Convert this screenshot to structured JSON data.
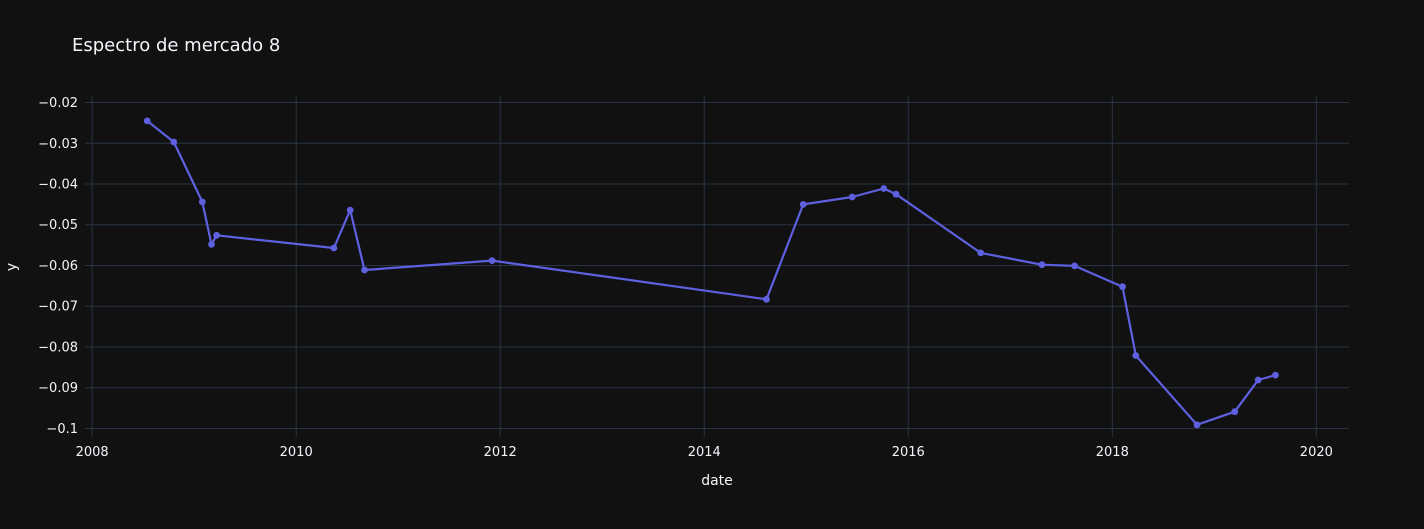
{
  "title": "Espectro de mercado 8",
  "colors": {
    "background": "#111111",
    "plot_background": "#111111",
    "grid": "#283442",
    "text": "#f2f5fa",
    "line": "#5e60e0",
    "marker": "#5e60e0"
  },
  "chart_data": {
    "type": "line",
    "mode": "lines+markers",
    "title": "Espectro de mercado 8",
    "xlabel": "date",
    "ylabel": "y",
    "grid": true,
    "legend": false,
    "xlim": [
      2007.93,
      2020.32
    ],
    "ylim": [
      -0.1021,
      -0.0184
    ],
    "x_ticks": {
      "values": [
        2008,
        2010,
        2012,
        2014,
        2016,
        2018,
        2020
      ],
      "labels": [
        "2008",
        "2010",
        "2012",
        "2014",
        "2016",
        "2018",
        "2020"
      ]
    },
    "y_ticks": {
      "values": [
        -0.02,
        -0.03,
        -0.04,
        -0.05,
        -0.06,
        -0.07,
        -0.08,
        -0.09,
        -0.1
      ],
      "labels": [
        "−0.02",
        "−0.03",
        "−0.04",
        "−0.05",
        "−0.06",
        "−0.07",
        "−0.08",
        "−0.09",
        "−0.1"
      ]
    },
    "series": [
      {
        "name": "y",
        "x": [
          2008.54,
          2008.8,
          2009.08,
          2009.17,
          2009.22,
          2010.37,
          2010.53,
          2010.67,
          2011.92,
          2014.61,
          2014.97,
          2015.45,
          2015.76,
          2015.88,
          2016.71,
          2017.31,
          2017.63,
          2018.1,
          2018.23,
          2018.83,
          2019.2,
          2019.43,
          2019.6
        ],
        "y": [
          -0.0245,
          -0.0297,
          -0.0444,
          -0.0548,
          -0.0526,
          -0.0557,
          -0.0464,
          -0.0611,
          -0.0588,
          -0.0683,
          -0.045,
          -0.0432,
          -0.0411,
          -0.0425,
          -0.0569,
          -0.0598,
          -0.0601,
          -0.0652,
          -0.0821,
          -0.0991,
          -0.0959,
          -0.0881,
          -0.0869
        ]
      }
    ]
  }
}
